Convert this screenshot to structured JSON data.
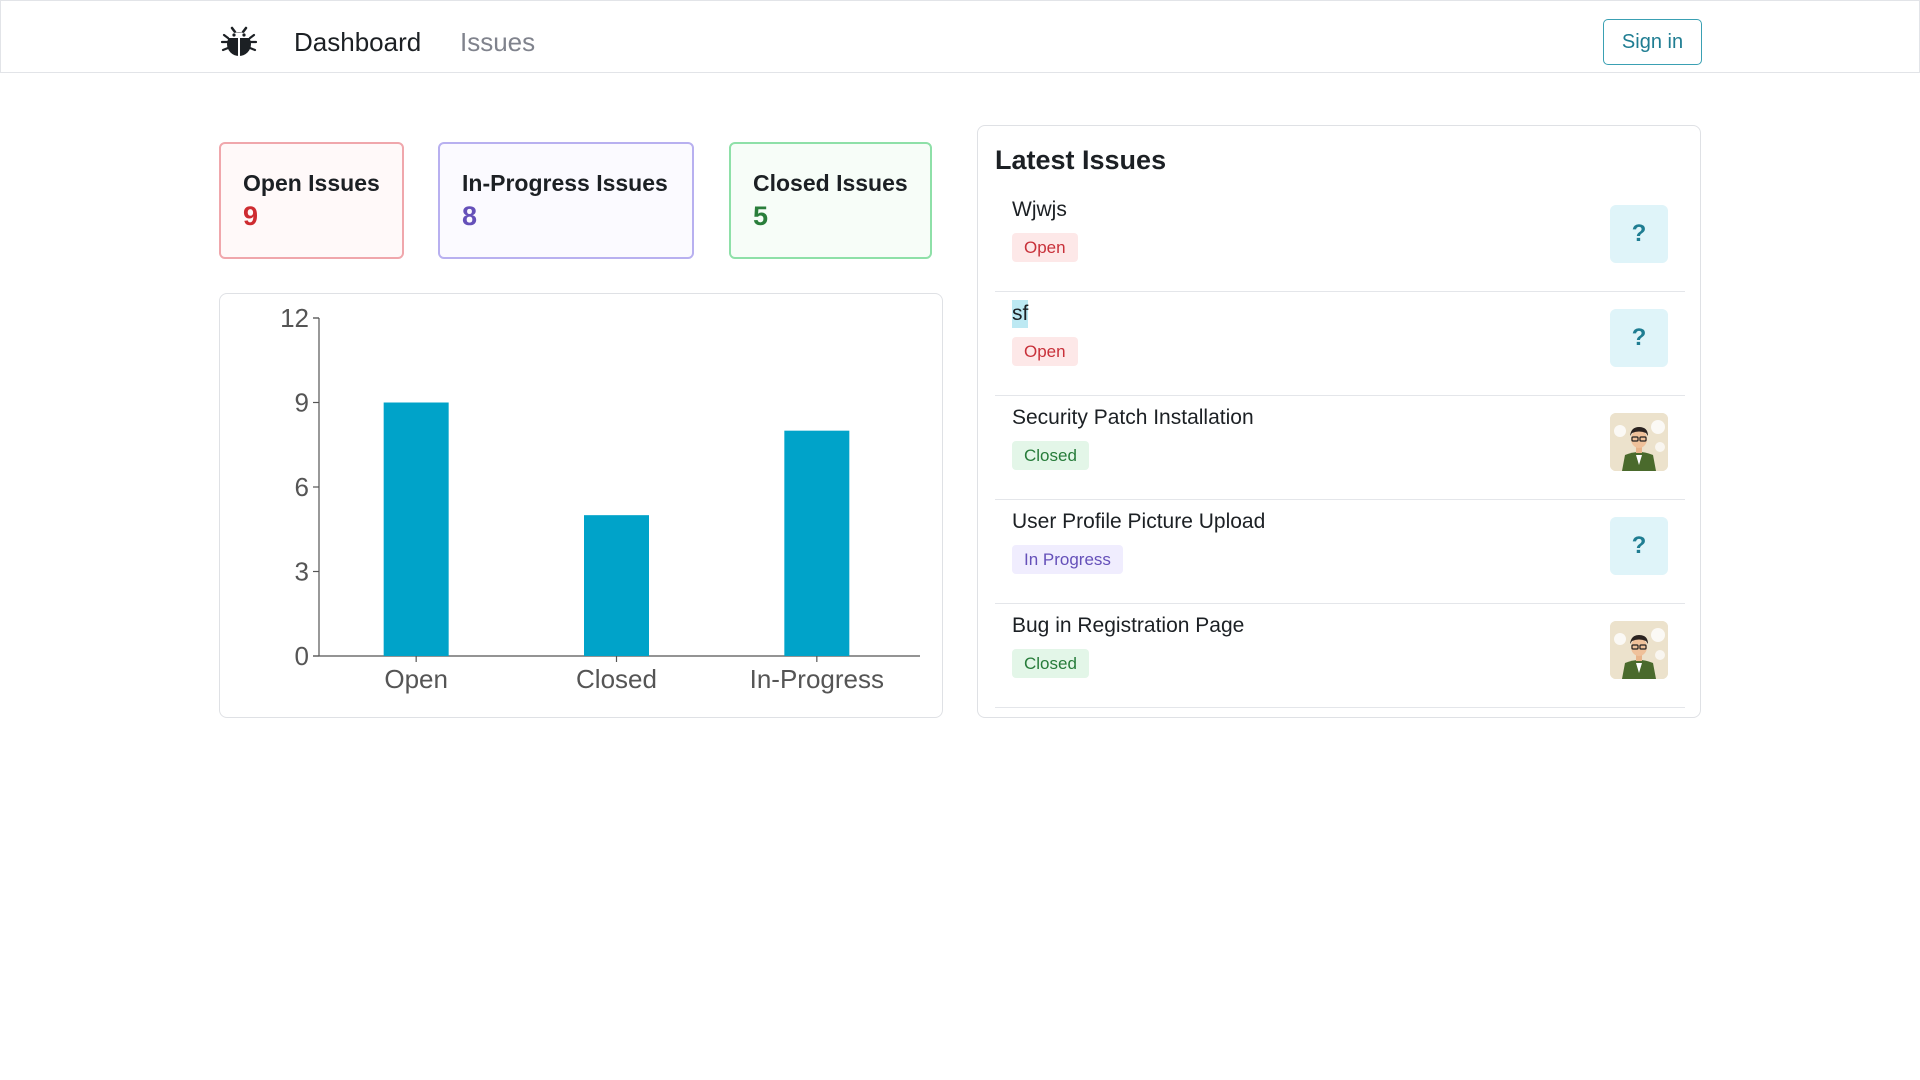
{
  "nav": {
    "logo_icon": "bug-icon",
    "dashboard_label": "Dashboard",
    "issues_label": "Issues",
    "signin_label": "Sign in"
  },
  "stats": [
    {
      "title": "Open Issues",
      "value": "9"
    },
    {
      "title": "In-Progress Issues",
      "value": "8"
    },
    {
      "title": "Closed Issues",
      "value": "5"
    }
  ],
  "chart_data": {
    "type": "bar",
    "categories": [
      "Open",
      "Closed",
      "In-Progress"
    ],
    "values": [
      9,
      5,
      8
    ],
    "title": "",
    "xlabel": "",
    "ylabel": "",
    "ylim": [
      0,
      12
    ],
    "yticks": [
      "0",
      "3",
      "6",
      "9",
      "12"
    ],
    "bar_color": "#00a3c9",
    "grid": false
  },
  "latest": {
    "title": "Latest Issues",
    "items": [
      {
        "title": "Wjwjs",
        "status": "Open",
        "assignee": "?"
      },
      {
        "title": "sf",
        "status": "Open",
        "assignee": "?"
      },
      {
        "title": "Security Patch Installation",
        "status": "Closed",
        "assignee": "avatar-image"
      },
      {
        "title": "User Profile Picture Upload",
        "status": "In Progress",
        "assignee": "?"
      },
      {
        "title": "Bug in Registration Page",
        "status": "Closed",
        "assignee": "avatar-image"
      }
    ]
  },
  "colors": {
    "accent": "#1f7d92",
    "open": "#ce2c31",
    "in_progress": "#6550b9",
    "closed": "#2a7e3b"
  }
}
